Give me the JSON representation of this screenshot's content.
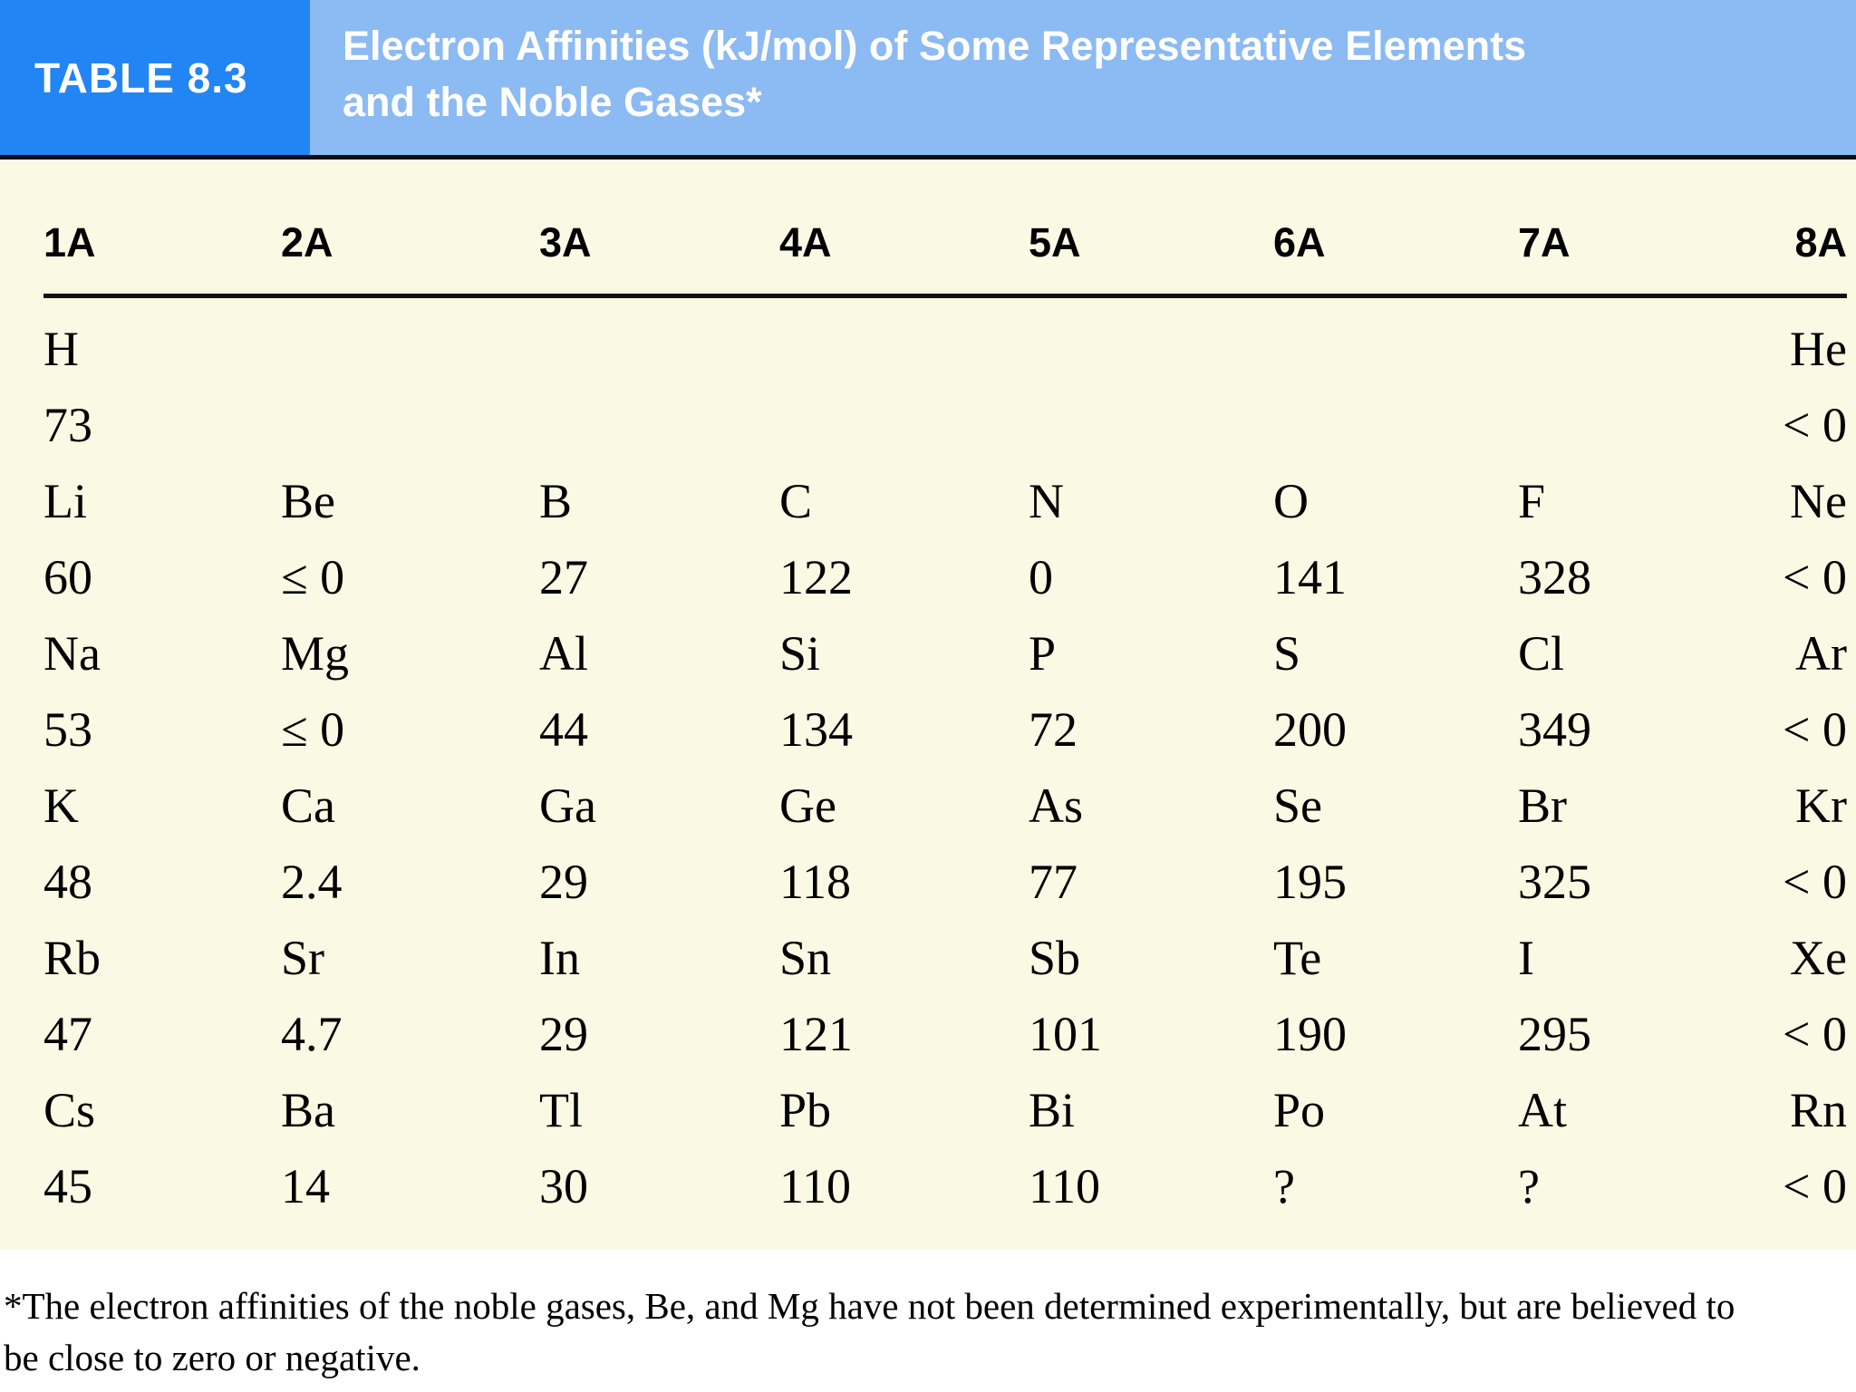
{
  "header": {
    "table_label": "TABLE 8.3",
    "title_line1": "Electron Affinities (kJ/mol) of Some Representative Elements",
    "title_line2": "and the Noble Gases*"
  },
  "chart_data": {
    "type": "table",
    "title": "Electron Affinities (kJ/mol) of Some Representative Elements and the Noble Gases*",
    "columns": [
      "1A",
      "2A",
      "3A",
      "4A",
      "5A",
      "6A",
      "7A",
      "8A"
    ],
    "rows": [
      {
        "symbols": [
          "H",
          "",
          "",
          "",
          "",
          "",
          "",
          "He"
        ],
        "values": [
          "73",
          "",
          "",
          "",
          "",
          "",
          "",
          "< 0"
        ]
      },
      {
        "symbols": [
          "Li",
          "Be",
          "B",
          "C",
          "N",
          "O",
          "F",
          "Ne"
        ],
        "values": [
          "60",
          "≤ 0",
          "27",
          "122",
          "0",
          "141",
          "328",
          "< 0"
        ]
      },
      {
        "symbols": [
          "Na",
          "Mg",
          "Al",
          "Si",
          "P",
          "S",
          "Cl",
          "Ar"
        ],
        "values": [
          "53",
          "≤ 0",
          "44",
          "134",
          "72",
          "200",
          "349",
          "< 0"
        ]
      },
      {
        "symbols": [
          "K",
          "Ca",
          "Ga",
          "Ge",
          "As",
          "Se",
          "Br",
          "Kr"
        ],
        "values": [
          "48",
          "2.4",
          "29",
          "118",
          "77",
          "195",
          "325",
          "< 0"
        ]
      },
      {
        "symbols": [
          "Rb",
          "Sr",
          "In",
          "Sn",
          "Sb",
          "Te",
          "I",
          "Xe"
        ],
        "values": [
          "47",
          "4.7",
          "29",
          "121",
          "101",
          "190",
          "295",
          "< 0"
        ]
      },
      {
        "symbols": [
          "Cs",
          "Ba",
          "Tl",
          "Pb",
          "Bi",
          "Po",
          "At",
          "Rn"
        ],
        "values": [
          "45",
          "14",
          "30",
          "110",
          "110",
          "?",
          "?",
          "< 0"
        ]
      }
    ]
  },
  "footnote": {
    "line1": "*The electron affinities of the noble gases, Be, and Mg have not been determined experimentally, but are believed to",
    "line2": "be close to zero or negative."
  },
  "colors": {
    "header_left_blue": "#2285f4",
    "header_right_blue": "#8cbaf3",
    "body_cream": "#fafae4",
    "text_black": "#000000",
    "title_white": "#ffffff"
  }
}
